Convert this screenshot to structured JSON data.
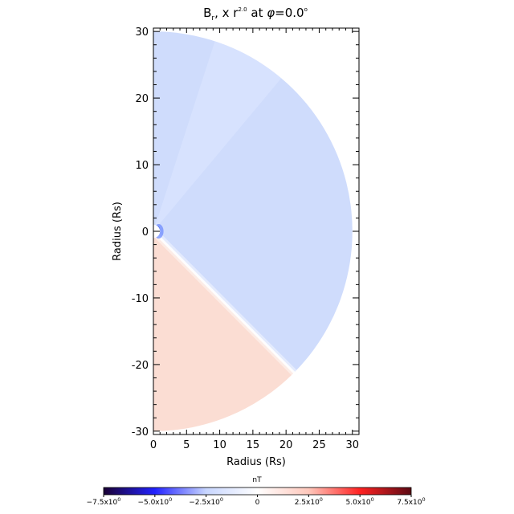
{
  "chart_data": {
    "type": "heatmap",
    "title": {
      "main": "B",
      "sub": "r",
      "r_prefix": ", x r",
      "exponent": "2.0",
      "at": " at ",
      "phi": "φ",
      "phi_value": "=0.0",
      "degree": "o"
    },
    "xlabel": "Radius (Rs)",
    "ylabel": "Radius (Rs)",
    "xlim": [
      0,
      31
    ],
    "ylim": [
      -30.5,
      30.5
    ],
    "xticks": [
      0,
      5,
      10,
      15,
      20,
      25,
      30
    ],
    "yticks": [
      -30,
      -20,
      -10,
      0,
      10,
      20,
      30
    ],
    "domain": {
      "shape": "half-disk",
      "outer_radius_rs": 30,
      "inner_radius_rs": 1,
      "current_sheet_polar_angle_deg": 135
    },
    "regions": [
      {
        "name": "negative-polarity",
        "from_angle_deg": 0,
        "to_angle_deg": 135,
        "value_nT": -0.6,
        "color": "#cfdcfc"
      },
      {
        "name": "positive-polarity",
        "from_angle_deg": 135,
        "to_angle_deg": 180,
        "value_nT": 0.6,
        "color": "#fbddd3"
      }
    ],
    "colorbar": {
      "label": "nT",
      "min": -7.5,
      "max": 7.5,
      "ticks": [
        {
          "value": -7.5,
          "mantissa": "−7.5x10",
          "exp": "0"
        },
        {
          "value": -5.0,
          "mantissa": "−5.0x10",
          "exp": "0"
        },
        {
          "value": -2.5,
          "mantissa": "−2.5x10",
          "exp": "0"
        },
        {
          "value": 0,
          "mantissa": "0",
          "exp": ""
        },
        {
          "value": 2.5,
          "mantissa": "2.5x10",
          "exp": "0"
        },
        {
          "value": 5.0,
          "mantissa": "5.0x10",
          "exp": "0"
        },
        {
          "value": 7.5,
          "mantissa": "7.5x10",
          "exp": "0"
        }
      ],
      "stops": [
        "#1a0033",
        "#2222ff",
        "#c8d6ff",
        "#ffffff",
        "#ffc8bc",
        "#ff2222",
        "#5c0a14"
      ]
    }
  }
}
